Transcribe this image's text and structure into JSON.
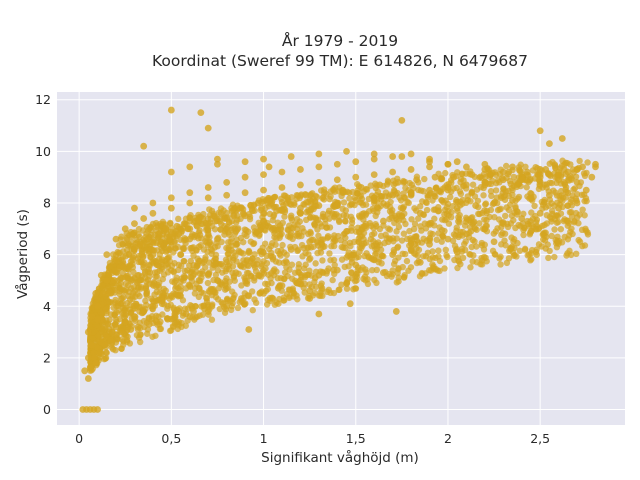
{
  "chart_data": {
    "type": "scatter",
    "title": "År 1979 - 2019",
    "subtitle": "Koordinat (Sweref 99 TM): E 614826, N 6479687",
    "xlabel": "Signifikant våghöjd (m)",
    "ylabel": "Vågperiod (s)",
    "xlim": [
      -0.12,
      2.96
    ],
    "ylim": [
      -0.6,
      12.3
    ],
    "x_ticks": [
      0,
      0.5,
      1,
      1.5,
      2,
      2.5
    ],
    "x_tick_labels": [
      "0",
      "0,5",
      "1",
      "1,5",
      "2",
      "2,5"
    ],
    "y_ticks": [
      0,
      2,
      4,
      6,
      8,
      10,
      12
    ],
    "y_tick_labels": [
      "0",
      "2",
      "4",
      "6",
      "8",
      "10",
      "12"
    ],
    "grid": true,
    "legend": "none",
    "colors": {
      "marker": "#d4a520",
      "plot_bg": "#e5e5f0",
      "grid": "#ffffff"
    },
    "series": [
      {
        "x": [
          0.02,
          0.04,
          0.06,
          0.08,
          0.1,
          0.05,
          0.06,
          0.08,
          0.1,
          0.12,
          0.15,
          0.18,
          0.2,
          0.25,
          0.3,
          0.35,
          0.4,
          0.45,
          0.5,
          0.55,
          0.6,
          0.65,
          0.7,
          0.05,
          0.07,
          0.09,
          0.12,
          0.15,
          0.2,
          0.25,
          0.3,
          0.35,
          0.4,
          0.5,
          0.6,
          0.7,
          0.8,
          0.9,
          1.0,
          1.1,
          1.2,
          1.3,
          1.4,
          1.5,
          1.6,
          1.7,
          1.8,
          1.9,
          2.0,
          0.08,
          0.12,
          0.18,
          0.25,
          0.35,
          0.45,
          0.55,
          0.65,
          0.75,
          0.85,
          0.95,
          1.05,
          1.15,
          1.25,
          1.35,
          1.45,
          1.55,
          1.65,
          1.75,
          1.85,
          1.95,
          2.05,
          2.15,
          2.25,
          2.35,
          2.45,
          2.55,
          2.65,
          2.75,
          0.1,
          0.15,
          0.2,
          0.3,
          0.4,
          0.5,
          0.6,
          0.7,
          0.8,
          0.9,
          1.0,
          1.1,
          1.2,
          1.3,
          1.4,
          1.5,
          1.6,
          1.7,
          1.8,
          1.9,
          2.0,
          2.1,
          2.2,
          2.3,
          2.4,
          2.5,
          2.6,
          2.7,
          2.8,
          0.3,
          0.4,
          0.5,
          0.6,
          0.7,
          0.8,
          0.9,
          1.0,
          1.1,
          1.2,
          1.3,
          1.4,
          1.5,
          1.6,
          1.7,
          1.8,
          1.9,
          2.0,
          2.1,
          2.2,
          2.3,
          2.4,
          2.5,
          2.6,
          2.7,
          0.5,
          0.6,
          0.75,
          0.9,
          1.0,
          1.15,
          1.3,
          1.45,
          1.6,
          1.75,
          1.9,
          2.05,
          2.2,
          2.35,
          2.5,
          2.65,
          2.78,
          0.35,
          0.45,
          0.55,
          0.65,
          0.75,
          0.85,
          1.0,
          1.2,
          1.4,
          1.6,
          1.8,
          2.0,
          2.2,
          2.4,
          2.6,
          0.09,
          0.11,
          0.14,
          0.17,
          0.2,
          0.23,
          0.28,
          0.32,
          0.38,
          0.42,
          0.48,
          0.52,
          0.58,
          0.62,
          0.68,
          0.72,
          0.78,
          0.82,
          0.88,
          0.92,
          0.98,
          1.08,
          1.18,
          1.28,
          1.38,
          1.48,
          0.12,
          0.16,
          0.22,
          0.27,
          0.33,
          0.37,
          0.43,
          0.47,
          0.53,
          0.57,
          0.63,
          0.67,
          0.73,
          0.77,
          0.83,
          0.87,
          0.93,
          0.97,
          1.03,
          1.13,
          1.23,
          1.33,
          1.43,
          1.53,
          1.63,
          1.73,
          1.83,
          1.93,
          2.03,
          2.13,
          2.23,
          2.33,
          2.43,
          2.53,
          2.63,
          2.73,
          0.03,
          0.05,
          0.07,
          0.1,
          0.13,
          0.19,
          0.24,
          0.29,
          0.34,
          0.39,
          0.44,
          0.49,
          0.54,
          0.59,
          0.64,
          0.69,
          0.74,
          0.79,
          0.84,
          0.89,
          0.94,
          0.99,
          1.0,
          1.1,
          1.2,
          1.3,
          1.4,
          1.5,
          1.6,
          1.7,
          1.8,
          1.9,
          2.0,
          2.1,
          2.2,
          2.3,
          2.4,
          2.5,
          2.6,
          2.7,
          0.5,
          0.6,
          0.7,
          0.8,
          0.9,
          1.05,
          1.25,
          1.45,
          1.65,
          1.85,
          2.05,
          2.25,
          2.45,
          2.65,
          0.4,
          0.5,
          0.6,
          0.8,
          1.0,
          1.2,
          1.4,
          1.6,
          1.8,
          2.0,
          2.2,
          2.4,
          2.55,
          2.7,
          2.8,
          0.5,
          0.66,
          0.7,
          0.35,
          0.75,
          1.75,
          2.5,
          2.55,
          2.62,
          1.25,
          1.3,
          0.92,
          1.72,
          1.82,
          1.47,
          1.03
        ],
        "y": [
          0,
          0,
          0,
          0,
          0,
          1.2,
          1.6,
          2.0,
          2.4,
          2.6,
          2.8,
          3.0,
          3.2,
          3.4,
          3.6,
          3.8,
          4.0,
          4.2,
          4.4,
          4.6,
          4.8,
          5.0,
          5.2,
          3.0,
          3.6,
          4.5,
          5.2,
          6.0,
          6.6,
          7.0,
          7.2,
          7.4,
          7.6,
          7.8,
          8.0,
          8.2,
          8.3,
          8.4,
          8.5,
          8.6,
          8.7,
          8.8,
          8.9,
          9.0,
          9.1,
          9.2,
          9.3,
          9.4,
          9.5,
          2.2,
          2.6,
          3.0,
          3.4,
          3.8,
          4.1,
          4.4,
          4.7,
          5.0,
          5.3,
          5.6,
          5.9,
          6.2,
          6.5,
          6.7,
          6.9,
          7.1,
          7.3,
          7.5,
          7.6,
          7.7,
          7.8,
          7.9,
          8.0,
          8.1,
          8.2,
          8.3,
          8.4,
          8.5,
          4.0,
          5.0,
          5.8,
          6.2,
          6.5,
          6.8,
          7.0,
          7.2,
          7.4,
          7.5,
          7.6,
          7.7,
          7.8,
          7.9,
          8.0,
          8.1,
          8.2,
          8.3,
          8.4,
          8.5,
          8.6,
          8.7,
          8.8,
          8.9,
          9.0,
          9.1,
          9.2,
          9.3,
          9.4,
          7.8,
          8.0,
          8.2,
          8.4,
          8.6,
          8.8,
          9.0,
          9.1,
          9.2,
          9.3,
          9.4,
          9.5,
          9.6,
          9.7,
          9.8,
          9.9,
          9.6,
          9.5,
          9.4,
          9.3,
          9.2,
          9.1,
          9.0,
          8.9,
          8.8,
          9.2,
          9.4,
          9.5,
          9.6,
          9.7,
          9.8,
          9.9,
          10.0,
          9.9,
          9.8,
          9.7,
          9.6,
          9.5,
          9.4,
          9.3,
          9.2,
          9.0,
          5.5,
          5.8,
          6.0,
          6.3,
          6.6,
          6.9,
          7.3,
          7.6,
          7.9,
          8.2,
          8.4,
          8.6,
          8.8,
          9.0,
          9.1,
          1.8,
          2.2,
          2.5,
          2.7,
          2.9,
          3.0,
          3.1,
          3.2,
          3.3,
          3.4,
          3.5,
          3.6,
          3.7,
          3.8,
          3.9,
          4.0,
          4.1,
          4.2,
          4.3,
          4.4,
          4.5,
          4.7,
          4.9,
          5.1,
          5.4,
          5.7,
          3.5,
          4.5,
          5.5,
          6.0,
          6.4,
          6.6,
          6.8,
          7.0,
          7.1,
          7.2,
          7.3,
          7.4,
          7.5,
          7.6,
          7.7,
          7.8,
          7.9,
          8.0,
          8.1,
          8.2,
          8.3,
          8.4,
          8.5,
          8.6,
          8.7,
          8.8,
          8.9,
          9.0,
          9.0,
          9.1,
          9.1,
          9.2,
          9.2,
          9.3,
          9.3,
          9.4,
          1.5,
          2.0,
          2.5,
          3.5,
          4.5,
          5.0,
          5.5,
          5.8,
          6.0,
          6.2,
          6.4,
          6.6,
          6.8,
          7.0,
          7.1,
          7.2,
          7.3,
          7.4,
          7.5,
          7.6,
          7.7,
          7.8,
          4.5,
          4.8,
          5.0,
          5.2,
          5.4,
          5.6,
          5.8,
          6.0,
          6.2,
          6.4,
          6.6,
          6.8,
          7.0,
          7.2,
          7.4,
          7.6,
          7.8,
          8.0,
          3.5,
          3.6,
          3.8,
          4.0,
          4.1,
          4.3,
          4.6,
          4.9,
          5.3,
          5.7,
          6.1,
          6.5,
          6.9,
          7.3,
          6.0,
          6.3,
          6.6,
          7.0,
          7.3,
          7.6,
          7.9,
          8.1,
          8.3,
          8.5,
          8.7,
          8.9,
          9.1,
          9.3,
          9.5,
          11.6,
          11.5,
          10.9,
          10.2,
          9.7,
          11.2,
          10.8,
          10.3,
          10.5,
          4.3,
          3.7,
          3.1,
          3.8,
          6.4,
          4.1,
          9.4
        ]
      }
    ]
  }
}
